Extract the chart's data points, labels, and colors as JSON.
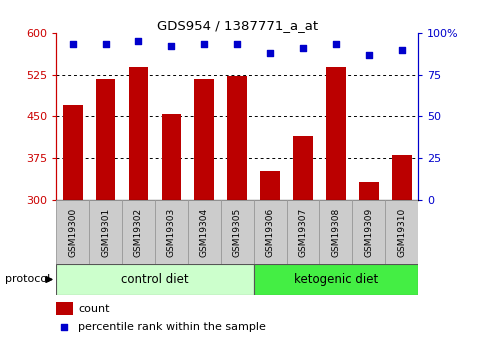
{
  "title": "GDS954 / 1387771_a_at",
  "samples": [
    "GSM19300",
    "GSM19301",
    "GSM19302",
    "GSM19303",
    "GSM19304",
    "GSM19305",
    "GSM19306",
    "GSM19307",
    "GSM19308",
    "GSM19309",
    "GSM19310"
  ],
  "counts": [
    470,
    518,
    538,
    455,
    518,
    522,
    352,
    415,
    538,
    332,
    380
  ],
  "percentile_ranks": [
    93,
    93,
    95,
    92,
    93,
    93,
    88,
    91,
    93,
    87,
    90
  ],
  "ylim_left": [
    300,
    600
  ],
  "ylim_right": [
    0,
    100
  ],
  "yticks_left": [
    300,
    375,
    450,
    525,
    600
  ],
  "yticks_right": [
    0,
    25,
    50,
    75,
    100
  ],
  "bar_color": "#bb0000",
  "dot_color": "#0000cc",
  "bg_color_control": "#ccffcc",
  "bg_color_ketogenic": "#44ee44",
  "label_bg_color": "#cccccc",
  "n_control": 6,
  "n_keto": 5,
  "protocol_label": "protocol",
  "control_label": "control diet",
  "ketogenic_label": "ketogenic diet",
  "legend_count": "count",
  "legend_pct": "percentile rank within the sample",
  "axis_left_color": "#cc0000",
  "axis_right_color": "#0000cc",
  "figsize": [
    4.89,
    3.45
  ],
  "dpi": 100
}
